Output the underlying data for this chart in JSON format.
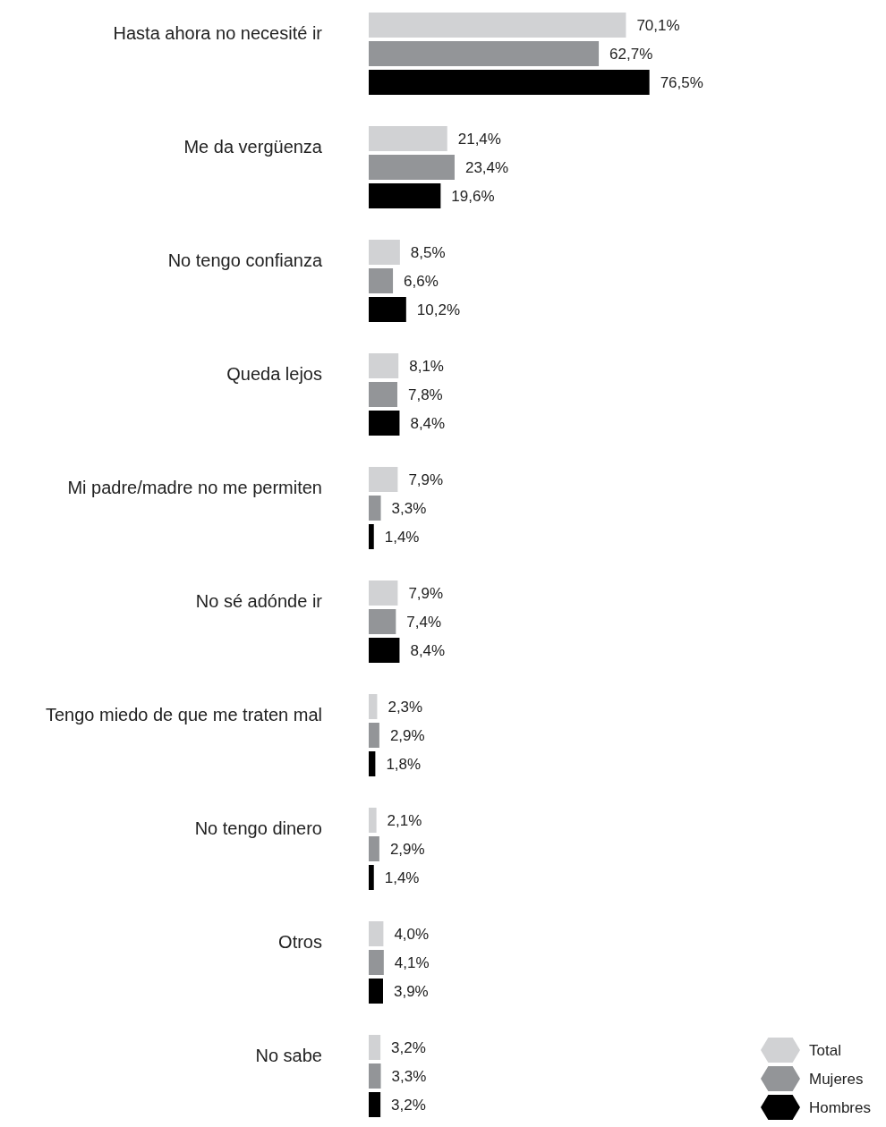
{
  "chart_data": {
    "type": "bar",
    "orientation": "horizontal",
    "legend": "bottom right",
    "categories": [
      "Hasta ahora no necesité ir",
      "Me da vergüenza",
      "No tengo confianza",
      "Queda lejos",
      "Mi padre/madre no me permiten",
      "No sé adónde ir",
      "Tengo miedo de que me traten mal",
      "No tengo dinero",
      "Otros",
      "No sabe"
    ],
    "series": [
      {
        "name": "Total",
        "color": "#d1d2d4",
        "values": [
          70.1,
          21.4,
          8.5,
          8.1,
          7.9,
          7.9,
          2.3,
          2.1,
          4.0,
          3.2
        ],
        "value_labels": [
          "70,1%",
          "21,4%",
          "8,5%",
          "8,1%",
          "7,9%",
          "7,9%",
          "2,3%",
          "2,1%",
          "4,0%",
          "3,2%"
        ]
      },
      {
        "name": "Mujeres",
        "color": "#939598",
        "values": [
          62.7,
          23.4,
          6.6,
          7.8,
          3.3,
          7.4,
          2.9,
          2.9,
          4.1,
          3.3
        ],
        "value_labels": [
          "62,7%",
          "23,4%",
          "6,6%",
          "7,8%",
          "3,3%",
          "7,4%",
          "2,9%",
          "2,9%",
          "4,1%",
          "3,3%"
        ]
      },
      {
        "name": "Hombres",
        "color": "#000000",
        "values": [
          76.5,
          19.6,
          10.2,
          8.4,
          1.4,
          8.4,
          1.8,
          1.4,
          3.9,
          3.2
        ],
        "value_labels": [
          "76,5%",
          "19,6%",
          "10,2%",
          "8,4%",
          "1,4%",
          "8,4%",
          "1,8%",
          "1,4%",
          "3,9%",
          "3,2%"
        ]
      }
    ]
  }
}
